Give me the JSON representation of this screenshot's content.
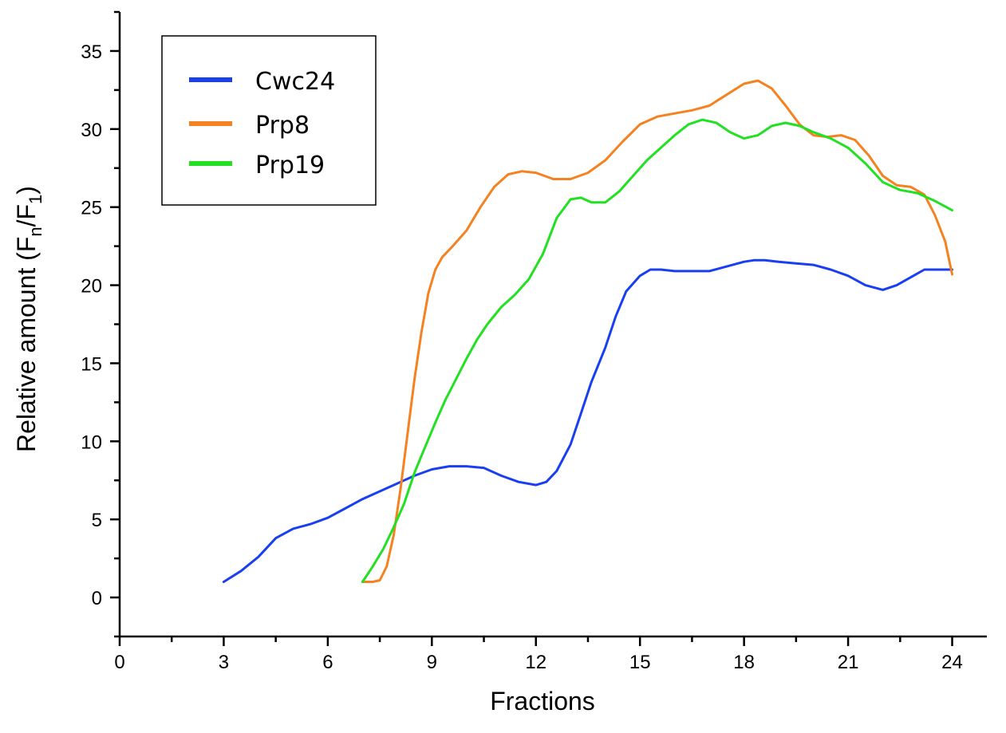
{
  "chart_data": {
    "type": "line",
    "title": "",
    "xlabel": "Fractions",
    "ylabel_parts": {
      "prefix": "Relative amount (F",
      "sub1": "n",
      "mid": "/F",
      "sub2": "1",
      "suffix": ")"
    },
    "xlim": [
      0,
      25
    ],
    "ylim": [
      -2.5,
      37.5
    ],
    "x_ticks": [
      "0",
      "3",
      "6",
      "9",
      "12",
      "15",
      "18",
      "21",
      "24"
    ],
    "x_tick_values": [
      0,
      3,
      6,
      9,
      12,
      15,
      18,
      21,
      24
    ],
    "y_ticks": [
      "0",
      "5",
      "10",
      "15",
      "20",
      "25",
      "30",
      "35"
    ],
    "y_tick_values": [
      0,
      5,
      10,
      15,
      20,
      25,
      30,
      35
    ],
    "grid": false,
    "legend_position": "top-left",
    "series": [
      {
        "name": "Cwc24",
        "color": "#1a3ff0",
        "x": [
          3,
          3.5,
          4,
          4.5,
          5,
          5.5,
          6,
          6.5,
          7,
          7.5,
          8,
          8.5,
          9,
          9.5,
          10,
          10.5,
          11,
          11.5,
          12,
          12.3,
          12.6,
          13,
          13.3,
          13.6,
          14,
          14.3,
          14.6,
          15,
          15.3,
          15.6,
          16,
          16.5,
          17,
          17.5,
          18,
          18.3,
          18.6,
          19,
          19.5,
          20,
          20.5,
          21,
          21.5,
          22,
          22.4,
          22.8,
          23.2,
          23.6,
          24
        ],
        "values": [
          1.0,
          1.7,
          2.6,
          3.8,
          4.4,
          4.7,
          5.1,
          5.7,
          6.3,
          6.8,
          7.3,
          7.8,
          8.2,
          8.4,
          8.4,
          8.3,
          7.8,
          7.4,
          7.2,
          7.4,
          8.1,
          9.8,
          11.8,
          13.8,
          16.0,
          18.0,
          19.6,
          20.6,
          21.0,
          21.0,
          20.9,
          20.9,
          20.9,
          21.2,
          21.5,
          21.6,
          21.6,
          21.5,
          21.4,
          21.3,
          21.0,
          20.6,
          20.0,
          19.7,
          20.0,
          20.5,
          21.0,
          21.0,
          21.0
        ]
      },
      {
        "name": "Prp8",
        "color": "#f58220",
        "x": [
          7,
          7.3,
          7.5,
          7.7,
          7.9,
          8.1,
          8.3,
          8.5,
          8.7,
          8.9,
          9.1,
          9.3,
          9.6,
          10,
          10.4,
          10.8,
          11.2,
          11.6,
          12,
          12.5,
          13,
          13.5,
          14,
          14.5,
          15,
          15.5,
          16,
          16.5,
          17,
          17.5,
          18,
          18.4,
          18.8,
          19.2,
          19.6,
          20,
          20.4,
          20.8,
          21.2,
          21.6,
          22,
          22.4,
          22.8,
          23.2,
          23.5,
          23.8,
          24
        ],
        "values": [
          1.0,
          1.0,
          1.1,
          2.0,
          4.0,
          7.0,
          10.5,
          14.0,
          17.0,
          19.5,
          21.0,
          21.8,
          22.5,
          23.5,
          25.0,
          26.3,
          27.1,
          27.3,
          27.2,
          26.8,
          26.8,
          27.2,
          28.0,
          29.2,
          30.3,
          30.8,
          31.0,
          31.2,
          31.5,
          32.2,
          32.9,
          33.1,
          32.6,
          31.5,
          30.3,
          29.6,
          29.5,
          29.6,
          29.3,
          28.3,
          27.0,
          26.4,
          26.3,
          25.8,
          24.5,
          22.8,
          20.7
        ]
      },
      {
        "name": "Prp19",
        "color": "#22e022",
        "x": [
          7,
          7.3,
          7.6,
          7.9,
          8.2,
          8.5,
          8.8,
          9.1,
          9.4,
          9.7,
          10,
          10.3,
          10.6,
          11,
          11.4,
          11.8,
          12.2,
          12.6,
          13,
          13.3,
          13.6,
          14,
          14.4,
          14.8,
          15.2,
          15.6,
          16,
          16.4,
          16.8,
          17.2,
          17.6,
          18,
          18.4,
          18.8,
          19.2,
          19.6,
          20,
          20.5,
          21,
          21.5,
          22,
          22.5,
          23,
          23.5,
          24
        ],
        "values": [
          1.0,
          2.0,
          3.1,
          4.5,
          6.0,
          8.0,
          9.6,
          11.2,
          12.7,
          14.0,
          15.3,
          16.5,
          17.5,
          18.6,
          19.4,
          20.4,
          22.0,
          24.3,
          25.5,
          25.6,
          25.3,
          25.3,
          26.0,
          27.0,
          28.0,
          28.8,
          29.6,
          30.3,
          30.6,
          30.4,
          29.8,
          29.4,
          29.6,
          30.2,
          30.4,
          30.2,
          29.8,
          29.4,
          28.8,
          27.8,
          26.6,
          26.1,
          25.9,
          25.4,
          24.8
        ]
      }
    ]
  }
}
